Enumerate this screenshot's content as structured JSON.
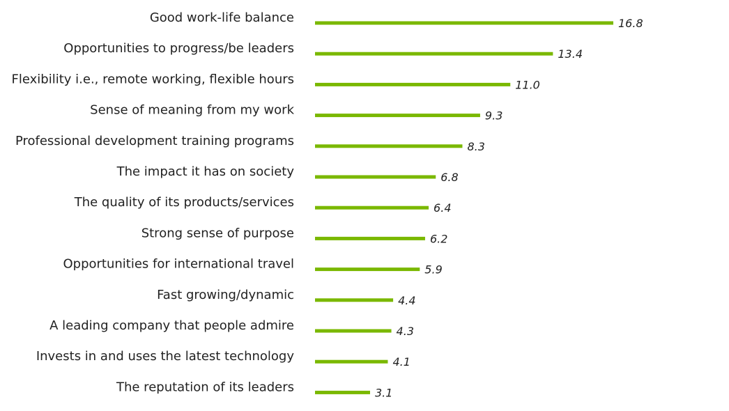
{
  "chart_data": {
    "type": "bar",
    "orientation": "horizontal",
    "categories": [
      "Good work-life balance",
      "Opportunities to progress/be leaders",
      "Flexibility i.e., remote working, flexible hours",
      "Sense of meaning from my work",
      "Professional development training programs",
      "The impact it has on society",
      "The quality of its products/services",
      "Strong sense of purpose",
      "Opportunities for international travel",
      "Fast growing/dynamic",
      "A leading company that people admire",
      "Invests in and uses the latest technology",
      "The reputation of its leaders"
    ],
    "values": [
      16.8,
      13.4,
      11.0,
      9.3,
      8.3,
      6.8,
      6.4,
      6.2,
      5.9,
      4.4,
      4.3,
      4.1,
      3.1
    ],
    "value_labels": [
      "16.8",
      "13.4",
      "11.0",
      "9.3",
      "8.3",
      "6.8",
      "6.4",
      "6.2",
      "5.9",
      "4.4",
      "4.3",
      "4.1",
      "3.1"
    ],
    "xlim": [
      0,
      16.8
    ],
    "bar_color": "#7ab800",
    "grid": false,
    "legend": "none"
  }
}
